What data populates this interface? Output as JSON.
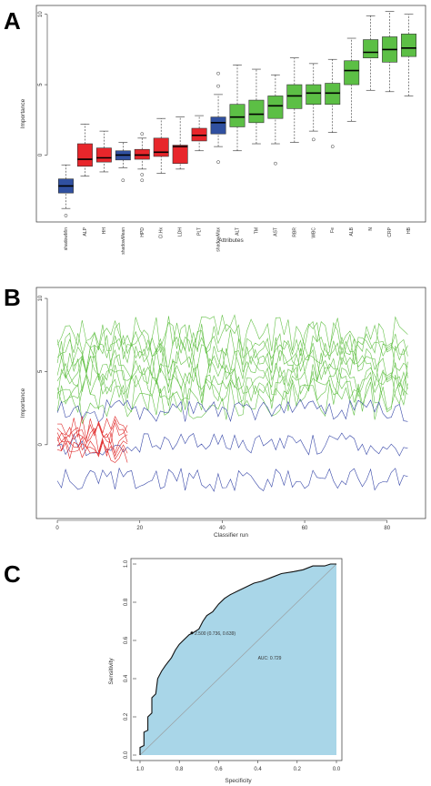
{
  "chart_data": [
    {
      "panel": "A",
      "type": "box",
      "xlabel": "Attributes",
      "ylabel": "Importance",
      "ylim": [
        -4.5,
        10.5
      ],
      "yticks": [
        0,
        5,
        10
      ],
      "colors": {
        "rejected": "#e8262b",
        "shadow": "#3050a0",
        "confirmed": "#5cbf45"
      },
      "boxes": [
        {
          "label": "shadowMin",
          "group": "shadow",
          "whisker_low": -3.8,
          "q1": -2.7,
          "median": -2.2,
          "q3": -1.7,
          "whisker_high": -0.7,
          "outliers": [
            -4.3
          ]
        },
        {
          "label": "ALP",
          "group": "rejected",
          "whisker_low": -1.5,
          "q1": -0.8,
          "median": -0.3,
          "q3": 0.8,
          "whisker_high": 2.2,
          "outliers": []
        },
        {
          "label": "HH",
          "group": "rejected",
          "whisker_low": -1.2,
          "q1": -0.5,
          "median": -0.2,
          "q3": 0.5,
          "whisker_high": 1.7,
          "outliers": []
        },
        {
          "label": "shadowMean",
          "group": "shadow",
          "whisker_low": -0.9,
          "q1": -0.35,
          "median": 0,
          "q3": 0.3,
          "whisker_high": 0.9,
          "outliers": [
            -1.8
          ]
        },
        {
          "label": "HPD",
          "group": "rejected",
          "whisker_low": -1.0,
          "q1": -0.3,
          "median": 0,
          "q3": 0.4,
          "whisker_high": 1.2,
          "outliers": [
            -1.8,
            -1.4,
            1.5
          ]
        },
        {
          "label": "Cl.Hx",
          "group": "rejected",
          "whisker_low": -1.3,
          "q1": -0.1,
          "median": 0.2,
          "q3": 1.2,
          "whisker_high": 2.6,
          "outliers": []
        },
        {
          "label": "LDH",
          "group": "rejected",
          "whisker_low": -1.0,
          "q1": -0.6,
          "median": 0.6,
          "q3": 0.7,
          "whisker_high": 2.7,
          "outliers": []
        },
        {
          "label": "PLT",
          "group": "rejected",
          "whisker_low": 0.3,
          "q1": 1.0,
          "median": 1.4,
          "q3": 1.9,
          "whisker_high": 2.8,
          "outliers": []
        },
        {
          "label": "shadowMax",
          "group": "shadow",
          "whisker_low": 0.6,
          "q1": 1.5,
          "median": 2.3,
          "q3": 2.7,
          "whisker_high": 4.3,
          "outliers": [
            -0.5,
            4.9,
            5.8
          ]
        },
        {
          "label": "ALT",
          "group": "confirmed",
          "whisker_low": 0.3,
          "q1": 2.0,
          "median": 2.7,
          "q3": 3.6,
          "whisker_high": 6.4,
          "outliers": []
        },
        {
          "label": "TM",
          "group": "confirmed",
          "whisker_low": 0.8,
          "q1": 2.3,
          "median": 2.9,
          "q3": 3.9,
          "whisker_high": 6.1,
          "outliers": []
        },
        {
          "label": "AST",
          "group": "confirmed",
          "whisker_low": 0.8,
          "q1": 2.6,
          "median": 3.5,
          "q3": 4.2,
          "whisker_high": 5.7,
          "outliers": [
            -0.6
          ]
        },
        {
          "label": "RBR",
          "group": "confirmed",
          "whisker_low": 0.9,
          "q1": 3.3,
          "median": 4.2,
          "q3": 5.0,
          "whisker_high": 6.9,
          "outliers": []
        },
        {
          "label": "WBC",
          "group": "confirmed",
          "whisker_low": 1.7,
          "q1": 3.6,
          "median": 4.4,
          "q3": 5.0,
          "whisker_high": 6.5,
          "outliers": [
            1.1
          ]
        },
        {
          "label": "Fe",
          "group": "confirmed",
          "whisker_low": 1.6,
          "q1": 3.6,
          "median": 4.4,
          "q3": 5.1,
          "whisker_high": 6.8,
          "outliers": [
            0.6
          ]
        },
        {
          "label": "ALB",
          "group": "confirmed",
          "whisker_low": 2.4,
          "q1": 5.0,
          "median": 6.0,
          "q3": 6.7,
          "whisker_high": 8.3,
          "outliers": []
        },
        {
          "label": "N",
          "group": "confirmed",
          "whisker_low": 4.6,
          "q1": 6.9,
          "median": 7.3,
          "q3": 8.2,
          "whisker_high": 9.9,
          "outliers": []
        },
        {
          "label": "CRP",
          "group": "confirmed",
          "whisker_low": 4.5,
          "q1": 6.6,
          "median": 7.5,
          "q3": 8.4,
          "whisker_high": 10.2,
          "outliers": []
        },
        {
          "label": "HB",
          "group": "confirmed",
          "whisker_low": 4.2,
          "q1": 7.0,
          "median": 7.6,
          "q3": 8.6,
          "whisker_high": 10.0,
          "outliers": []
        }
      ]
    },
    {
      "panel": "B",
      "type": "line",
      "xlabel": "Classifier run",
      "ylabel": "Importance",
      "xlim": [
        -2,
        88
      ],
      "ylim": [
        -4.8,
        10.5
      ],
      "xticks": [
        0,
        20,
        40,
        60,
        80
      ],
      "yticks": [
        0,
        5,
        10
      ],
      "runs": 86,
      "colors": {
        "confirmed": "#66c24a",
        "shadow": "#3848a8",
        "rejected": "#e02a2a"
      },
      "series_groups": [
        {
          "group": "confirmed",
          "count": 10,
          "runs": 86,
          "level_min": 3.0,
          "level_max": 7.6,
          "noise": 1.3
        },
        {
          "group": "shadow",
          "runs": 86,
          "levels": [
            2.3,
            0.0,
            -2.4
          ],
          "noise": 0.8
        },
        {
          "group": "rejected",
          "count": 7,
          "runs": 18,
          "level_min": -0.5,
          "level_max": 1.2,
          "noise": 0.9
        }
      ]
    },
    {
      "panel": "C",
      "type": "roc",
      "xlabel": "Specificity",
      "ylabel": "Sensitivity",
      "xlim": [
        1.0,
        0.0
      ],
      "ylim": [
        0.0,
        1.0
      ],
      "xticks": [
        1.0,
        0.8,
        0.6,
        0.4,
        0.2,
        0.0
      ],
      "yticks": [
        0.0,
        0.2,
        0.4,
        0.6,
        0.8,
        1.0
      ],
      "auc_label": "AUC: 0.729",
      "threshold_label": "2.500 (0.736, 0.639)",
      "threshold_point": {
        "specificity": 0.736,
        "sensitivity": 0.639
      },
      "fill_color": "#a9d6e8",
      "curve": [
        [
          1.0,
          0.0
        ],
        [
          1.0,
          0.04
        ],
        [
          0.98,
          0.05
        ],
        [
          0.98,
          0.12
        ],
        [
          0.96,
          0.13
        ],
        [
          0.96,
          0.2
        ],
        [
          0.94,
          0.22
        ],
        [
          0.94,
          0.3
        ],
        [
          0.92,
          0.32
        ],
        [
          0.91,
          0.4
        ],
        [
          0.89,
          0.44
        ],
        [
          0.87,
          0.47
        ],
        [
          0.84,
          0.51
        ],
        [
          0.82,
          0.55
        ],
        [
          0.8,
          0.58
        ],
        [
          0.78,
          0.6
        ],
        [
          0.75,
          0.63
        ],
        [
          0.73,
          0.64
        ],
        [
          0.7,
          0.66
        ],
        [
          0.68,
          0.7
        ],
        [
          0.66,
          0.73
        ],
        [
          0.63,
          0.75
        ],
        [
          0.6,
          0.79
        ],
        [
          0.57,
          0.82
        ],
        [
          0.54,
          0.84
        ],
        [
          0.5,
          0.86
        ],
        [
          0.46,
          0.88
        ],
        [
          0.42,
          0.9
        ],
        [
          0.38,
          0.91
        ],
        [
          0.33,
          0.93
        ],
        [
          0.28,
          0.95
        ],
        [
          0.22,
          0.96
        ],
        [
          0.17,
          0.97
        ],
        [
          0.12,
          0.99
        ],
        [
          0.06,
          0.99
        ],
        [
          0.03,
          1.0
        ],
        [
          0.0,
          1.0
        ]
      ]
    }
  ]
}
